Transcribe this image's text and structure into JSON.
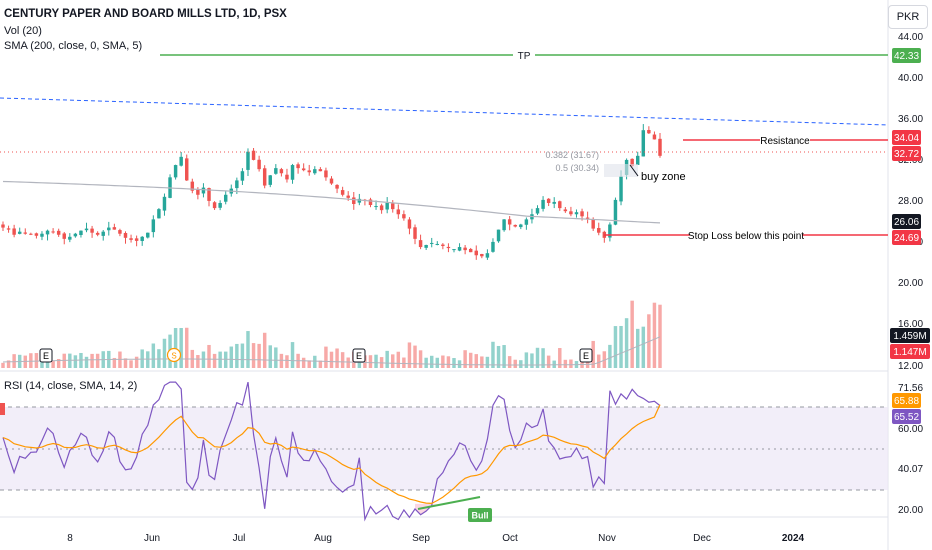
{
  "header": {
    "title": "CENTURY PAPER AND BOARD MILLS LTD, 1D, PSX",
    "vol_label": "Vol (20)",
    "sma_label": "SMA (200, close, 0, SMA, 5)",
    "currency": "PKR",
    "rsi_label": "RSI (14, close, SMA, 14, 2)"
  },
  "colors": {
    "up": "#26a69a",
    "down": "#ef5350",
    "sma": "#b2b5be",
    "tp": "#4caf50",
    "resistance": "#f23645",
    "trendline": "#2962ff",
    "rsi": "#7e57c2",
    "rsi_ma": "#ff9800",
    "rsi_band": "#ede7f6"
  },
  "chart_data": [
    {
      "type": "candlestick",
      "title": "CENTURY PAPER AND BOARD MILLS LTD, 1D, PSX",
      "price_axis_ticks": [
        "44.00",
        "40.00",
        "36.00",
        "32.00",
        "28.00",
        "24.00",
        "20.00",
        "16.00",
        "12.00"
      ],
      "time_axis_ticks": [
        "8",
        "Jun",
        "Jul",
        "Aug",
        "Sep",
        "Oct",
        "Nov",
        "Dec",
        "2024"
      ],
      "ylim": [
        11,
        45
      ],
      "series": [
        {
          "name": "price",
          "close": [
            25.7,
            25.5,
            25.0,
            25.3,
            25.1,
            25.0,
            24.9,
            25.1,
            25.4,
            25.3,
            25.0,
            24.6,
            24.8,
            25.1,
            25.4,
            25.6,
            25.2,
            25.0,
            25.3,
            25.7,
            25.5,
            25.1,
            24.7,
            24.5,
            24.4,
            24.8,
            25.2,
            26.5,
            27.5,
            28.7,
            30.6,
            31.8,
            32.6,
            30.3,
            29.3,
            28.9,
            29.6,
            28.3,
            27.6,
            28.1,
            28.9,
            29.5,
            30.3,
            31.2,
            33.1,
            32.3,
            31.4,
            29.8,
            30.8,
            31.5,
            31.0,
            30.4,
            31.8,
            31.5,
            31.3,
            31.1,
            31.4,
            31.2,
            30.6,
            30.0,
            29.5,
            28.9,
            28.6,
            28.0,
            28.5,
            28.3,
            27.9,
            27.8,
            27.4,
            28.1,
            27.5,
            27.0,
            26.6,
            25.6,
            24.6,
            23.8,
            24.0,
            24.2,
            24.1,
            23.9,
            23.7,
            23.6,
            23.8,
            23.5,
            23.3,
            23.0,
            22.9,
            23.2,
            24.3,
            25.5,
            26.5,
            26.0,
            25.8,
            26.0,
            26.5,
            27.0,
            27.6,
            28.4,
            28.1,
            28.2,
            27.6,
            27.3,
            27.0,
            27.2,
            26.8,
            26.6,
            25.6,
            25.2,
            24.7,
            26.0,
            28.4,
            30.7,
            32.3,
            31.7,
            32.7,
            35.2,
            34.9,
            34.3,
            32.7
          ]
        },
        {
          "name": "SMA (200, close, 0, SMA, 5)"
        },
        {
          "name": "Vol (20)"
        },
        {
          "name": "RSI (14, close, SMA, 14, 2)"
        }
      ],
      "value_labels": {
        "tp": "42.33",
        "resistance": "34.04",
        "last_price": "32.72",
        "sma_value": "26.06",
        "stop_loss": "24.69",
        "vol_ma": "1.459M",
        "vol_last": "1.147M"
      },
      "annotations": {
        "tp": "TP",
        "resistance": "Resistance",
        "stop_loss": "Stop Loss below this point",
        "buy_zone": "buy zone",
        "fib_382": "0.382 (31.67)",
        "fib_5": "0.5 (30.34)",
        "bull": "Bull",
        "earnings": "E",
        "dividend": "S"
      }
    },
    {
      "type": "line",
      "title": "RSI (14, close, SMA, 14, 2)",
      "ylim": [
        15,
        80
      ],
      "axis_ticks": [
        "71.56",
        "60.00",
        "40.07",
        "20.00"
      ],
      "value_labels": {
        "rsi_ma": "65.88",
        "rsi": "65.52"
      }
    }
  ]
}
